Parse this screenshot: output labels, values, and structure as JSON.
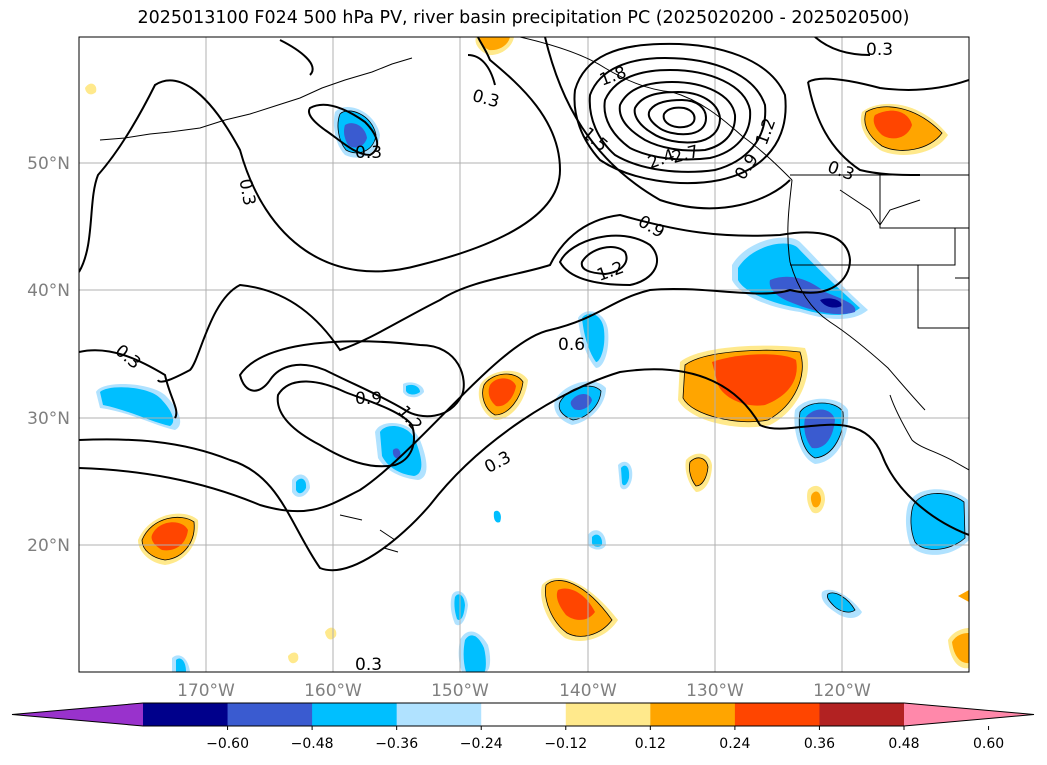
{
  "title": "2025013100 F024 500 hPa PV, river basin precipitation PC (2025020200 - 2025020500)",
  "map": {
    "lat_labels": [
      "50°N",
      "40°N",
      "30°N",
      "20°N"
    ],
    "lon_labels": [
      "170°W",
      "160°W",
      "150°W",
      "140°W",
      "130°W",
      "120°W"
    ],
    "contour_labels": [
      "0.3",
      "0.3",
      "0.3",
      "0.3",
      "0.3",
      "0.3",
      "0.3",
      "0.3",
      "0.6",
      "0.9",
      "0.9",
      "0.9",
      "1.2",
      "1.2",
      "1.2",
      "1.5",
      "1.8",
      "2.4",
      "2.7"
    ]
  },
  "colorbar": {
    "ticks": [
      "−0.60",
      "−0.48",
      "−0.36",
      "−0.24",
      "−0.12",
      "0.12",
      "0.24",
      "0.36",
      "0.48",
      "0.60"
    ],
    "colors": [
      "#9932cc",
      "#00008b",
      "#3a5bd0",
      "#00bfff",
      "#b0e2ff",
      "#ffffff",
      "#ffe98c",
      "#ffa500",
      "#ff4500",
      "#b22222",
      "#ff88aa"
    ]
  },
  "fill_colors": {
    "yellow": "#ffe98c",
    "orange": "#ffa500",
    "red": "#ff4500",
    "lightblue": "#b0e2ff",
    "blue": "#00bfff",
    "medblue": "#3a5bd0",
    "navy": "#00008b"
  }
}
